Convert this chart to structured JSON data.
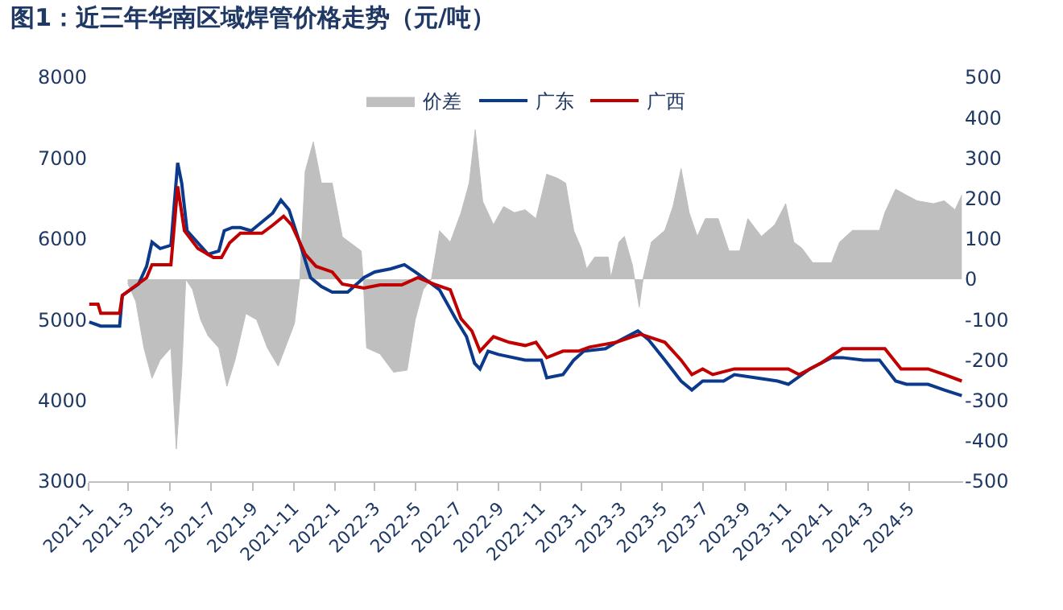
{
  "chart_data": {
    "type": "line",
    "title": "图1：近三年华南区域焊管价格走势（元/吨）",
    "xlim": [
      "2021-01-01",
      "2024-07-20"
    ],
    "xticks": [
      {
        "value": "2021-01-01",
        "label": "2021-1"
      },
      {
        "value": "2021-03-01",
        "label": "2021-3"
      },
      {
        "value": "2021-05-01",
        "label": "2021-5"
      },
      {
        "value": "2021-07-01",
        "label": "2021-7"
      },
      {
        "value": "2021-09-01",
        "label": "2021-9"
      },
      {
        "value": "2021-11-01",
        "label": "2021-11"
      },
      {
        "value": "2022-01-01",
        "label": "2022-1"
      },
      {
        "value": "2022-03-01",
        "label": "2022-3"
      },
      {
        "value": "2022-05-01",
        "label": "2022-5"
      },
      {
        "value": "2022-07-01",
        "label": "2022-7"
      },
      {
        "value": "2022-09-01",
        "label": "2022-9"
      },
      {
        "value": "2022-11-01",
        "label": "2022-11"
      },
      {
        "value": "2023-01-01",
        "label": "2023-1"
      },
      {
        "value": "2023-03-01",
        "label": "2023-3"
      },
      {
        "value": "2023-05-01",
        "label": "2023-5"
      },
      {
        "value": "2023-07-01",
        "label": "2023-7"
      },
      {
        "value": "2023-09-01",
        "label": "2023-9"
      },
      {
        "value": "2023-11-01",
        "label": "2023-11"
      },
      {
        "value": "2024-01-01",
        "label": "2024-1"
      },
      {
        "value": "2024-03-01",
        "label": "2024-3"
      },
      {
        "value": "2024-05-01",
        "label": "2024-5"
      }
    ],
    "ylim": [
      3000,
      8000
    ],
    "yticks": [
      3000,
      4000,
      5000,
      6000,
      7000,
      8000
    ],
    "y2lim": [
      -500,
      500
    ],
    "y2ticks": [
      -500,
      -400,
      -300,
      -200,
      -100,
      0,
      100,
      200,
      300,
      400,
      500
    ],
    "legend": "top",
    "marker": "none",
    "line_style": "solid",
    "series": [
      {
        "name": "价差",
        "type": "area",
        "axis": "y2",
        "color": "#bfbfbf",
        "x": [
          "2021-02-28",
          "2021-03-12",
          "2021-03-24",
          "2021-04-05",
          "2021-04-17",
          "2021-05-03",
          "2021-05-11",
          "2021-05-19",
          "2021-05-25",
          "2021-06-04",
          "2021-06-16",
          "2021-06-27",
          "2021-07-13",
          "2021-07-25",
          "2021-08-06",
          "2021-08-22",
          "2021-09-07",
          "2021-09-23",
          "2021-10-09",
          "2021-11-02",
          "2021-11-10",
          "2021-11-18",
          "2021-11-30",
          "2021-12-12",
          "2021-12-28",
          "2022-01-12",
          "2022-02-09",
          "2022-02-12",
          "2022-02-17",
          "2022-03-09",
          "2022-03-29",
          "2022-04-18",
          "2022-04-30",
          "2022-05-12",
          "2022-05-24",
          "2022-06-05",
          "2022-06-21",
          "2022-07-07",
          "2022-07-19",
          "2022-07-28",
          "2022-08-08",
          "2022-08-24",
          "2022-09-08",
          "2022-09-24",
          "2022-10-10",
          "2022-10-26",
          "2022-11-11",
          "2022-11-27",
          "2022-12-09",
          "2022-12-21",
          "2023-01-01",
          "2023-01-09",
          "2023-01-21",
          "2023-02-10",
          "2023-02-14",
          "2023-02-26",
          "2023-03-06",
          "2023-03-18",
          "2023-03-28",
          "2023-04-03",
          "2023-04-15",
          "2023-05-05",
          "2023-05-17",
          "2023-05-29",
          "2023-06-10",
          "2023-06-22",
          "2023-07-04",
          "2023-07-23",
          "2023-08-08",
          "2023-08-24",
          "2023-09-05",
          "2023-09-25",
          "2023-10-15",
          "2023-10-31",
          "2023-11-12",
          "2023-11-24",
          "2023-12-10",
          "2024-01-07",
          "2024-01-19",
          "2024-02-07",
          "2024-03-18",
          "2024-03-26",
          "2024-04-11",
          "2024-04-27",
          "2024-05-13",
          "2024-06-06",
          "2024-06-22",
          "2024-07-08",
          "2024-07-18"
        ],
        "values": [
          -10,
          -55,
          -170,
          -245,
          -200,
          -170,
          -420,
          -230,
          0,
          -25,
          -100,
          -140,
          -170,
          -265,
          -200,
          -85,
          -100,
          -170,
          -215,
          -110,
          0,
          267,
          340,
          238,
          238,
          105,
          70,
          0,
          -170,
          -185,
          -230,
          -225,
          -100,
          -25,
          0,
          120,
          92,
          165,
          238,
          370,
          193,
          135,
          180,
          165,
          172,
          150,
          260,
          250,
          238,
          120,
          77,
          26,
          55,
          55,
          4,
          92,
          106,
          34,
          -69,
          4,
          92,
          121,
          180,
          274,
          165,
          106,
          150,
          150,
          70,
          70,
          150,
          106,
          135,
          187,
          92,
          77,
          41,
          41,
          92,
          121,
          121,
          165,
          223,
          208,
          194,
          187,
          194,
          172,
          208
        ]
      },
      {
        "name": "广东",
        "color": "#0b3a8c",
        "x": [
          "2021-01-02",
          "2021-01-19",
          "2021-02-16",
          "2021-02-20",
          "2021-03-16",
          "2021-03-28",
          "2021-04-05",
          "2021-04-17",
          "2021-05-03",
          "2021-05-13",
          "2021-05-19",
          "2021-05-27",
          "2021-06-12",
          "2021-06-27",
          "2021-07-13",
          "2021-07-21",
          "2021-08-02",
          "2021-08-14",
          "2021-08-30",
          "2021-09-15",
          "2021-10-01",
          "2021-10-13",
          "2021-10-25",
          "2021-11-10",
          "2021-11-26",
          "2021-12-12",
          "2021-12-28",
          "2022-01-20",
          "2022-02-13",
          "2022-03-01",
          "2022-03-25",
          "2022-04-14",
          "2022-04-30",
          "2022-05-12",
          "2022-06-05",
          "2022-06-29",
          "2022-07-15",
          "2022-07-27",
          "2022-08-04",
          "2022-08-16",
          "2022-08-31",
          "2022-10-10",
          "2022-11-03",
          "2022-11-11",
          "2022-12-05",
          "2022-12-21",
          "2023-01-05",
          "2023-02-06",
          "2023-02-22",
          "2023-03-26",
          "2023-04-11",
          "2023-05-05",
          "2023-05-29",
          "2023-06-14",
          "2023-06-30",
          "2023-07-31",
          "2023-08-16",
          "2023-09-17",
          "2023-10-19",
          "2023-11-04",
          "2023-12-06",
          "2024-01-07",
          "2024-01-23",
          "2024-02-23",
          "2024-03-18",
          "2024-04-11",
          "2024-04-27",
          "2024-05-29",
          "2024-06-22",
          "2024-07-18"
        ],
        "values": [
          4970,
          4920,
          4920,
          5300,
          5440,
          5660,
          5960,
          5880,
          5920,
          6940,
          6690,
          6100,
          5950,
          5810,
          5850,
          6100,
          6140,
          6140,
          6100,
          6210,
          6320,
          6480,
          6360,
          5950,
          5520,
          5410,
          5340,
          5340,
          5520,
          5590,
          5630,
          5680,
          5590,
          5520,
          5370,
          5010,
          4790,
          4460,
          4390,
          4610,
          4570,
          4500,
          4500,
          4280,
          4320,
          4500,
          4610,
          4640,
          4720,
          4860,
          4750,
          4500,
          4240,
          4130,
          4240,
          4240,
          4320,
          4280,
          4240,
          4200,
          4390,
          4530,
          4530,
          4500,
          4500,
          4240,
          4200,
          4200,
          4130,
          4060
        ]
      },
      {
        "name": "广西",
        "color": "#c00000",
        "x": [
          "2021-01-02",
          "2021-01-15",
          "2021-01-19",
          "2021-02-16",
          "2021-02-20",
          "2021-03-28",
          "2021-04-05",
          "2021-05-03",
          "2021-05-13",
          "2021-05-23",
          "2021-06-12",
          "2021-07-05",
          "2021-07-17",
          "2021-07-29",
          "2021-08-14",
          "2021-09-15",
          "2021-10-01",
          "2021-10-17",
          "2021-10-29",
          "2021-11-18",
          "2021-12-04",
          "2021-12-28",
          "2022-01-12",
          "2022-02-13",
          "2022-03-09",
          "2022-04-10",
          "2022-05-04",
          "2022-05-28",
          "2022-06-21",
          "2022-07-07",
          "2022-07-23",
          "2022-08-04",
          "2022-08-24",
          "2022-09-16",
          "2022-10-10",
          "2022-10-26",
          "2022-11-11",
          "2022-12-05",
          "2022-12-28",
          "2023-01-13",
          "2023-02-22",
          "2023-03-18",
          "2023-03-30",
          "2023-05-05",
          "2023-05-29",
          "2023-06-14",
          "2023-06-30",
          "2023-07-15",
          "2023-08-16",
          "2023-11-04",
          "2023-11-20",
          "2023-12-22",
          "2024-01-23",
          "2024-02-23",
          "2024-03-26",
          "2024-04-19",
          "2024-05-29",
          "2024-06-22",
          "2024-07-18"
        ],
        "values": [
          5190,
          5190,
          5080,
          5080,
          5300,
          5520,
          5680,
          5680,
          6650,
          6100,
          5880,
          5770,
          5770,
          5950,
          6070,
          6070,
          6170,
          6280,
          6170,
          5810,
          5660,
          5590,
          5440,
          5390,
          5430,
          5430,
          5520,
          5440,
          5370,
          5010,
          4860,
          4610,
          4790,
          4720,
          4680,
          4720,
          4530,
          4610,
          4610,
          4660,
          4720,
          4790,
          4820,
          4720,
          4500,
          4320,
          4390,
          4320,
          4390,
          4390,
          4320,
          4460,
          4640,
          4640,
          4640,
          4390,
          4390,
          4320,
          4240
        ]
      }
    ]
  }
}
